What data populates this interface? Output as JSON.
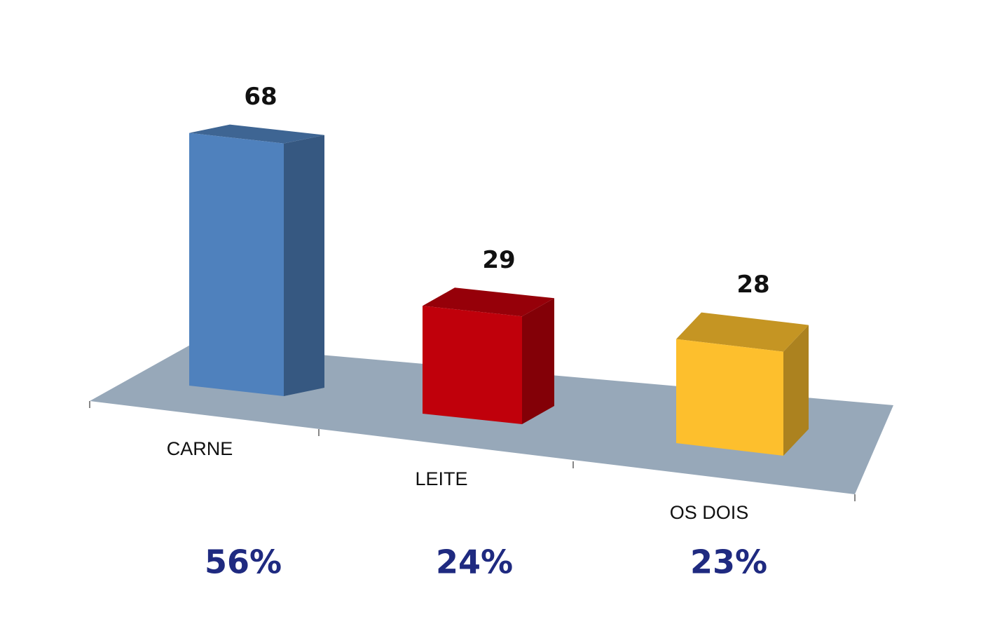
{
  "chart_data": {
    "type": "bar3d",
    "categories": [
      "CARNE",
      "LEITE",
      "OS DOIS"
    ],
    "values": [
      68,
      29,
      28
    ],
    "colors": [
      "#4f81bd",
      "#c0000b",
      "#fdbf2d"
    ],
    "shares": [
      56,
      24,
      23
    ],
    "share_labels": [
      "56%",
      "24%",
      "23%"
    ]
  }
}
